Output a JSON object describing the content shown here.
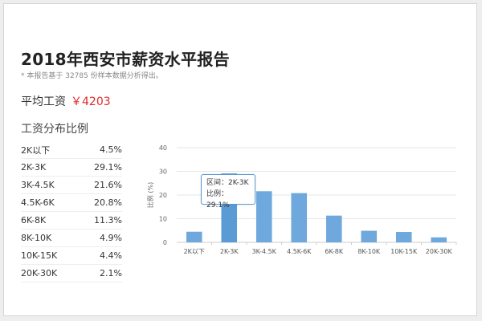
{
  "report": {
    "title": "2018年西安市薪资水平报告",
    "note": "* 本报告基于 32785 份样本数据分析得出。",
    "avg_label": "平均工资",
    "avg_value": "￥4203",
    "distribution_title": "工资分布比例"
  },
  "table": [
    {
      "range": "2K以下",
      "pct": "4.5%"
    },
    {
      "range": "2K-3K",
      "pct": "29.1%"
    },
    {
      "range": "3K-4.5K",
      "pct": "21.6%"
    },
    {
      "range": "4.5K-6K",
      "pct": "20.8%"
    },
    {
      "range": "6K-8K",
      "pct": "11.3%"
    },
    {
      "range": "8K-10K",
      "pct": "4.9%"
    },
    {
      "range": "10K-15K",
      "pct": "4.4%"
    },
    {
      "range": "20K-30K",
      "pct": "2.1%"
    }
  ],
  "tooltip": {
    "line1": "区间：2K-3K",
    "line2": "比例：29.1%"
  },
  "colors": {
    "bar": "#6fa8dc",
    "bar_highlight": "#5b9bd5",
    "accent_red": "#e02a2a"
  },
  "chart_data": {
    "type": "bar",
    "categories": [
      "2K以下",
      "2K-3K",
      "3K-4.5K",
      "4.5K-6K",
      "6K-8K",
      "8K-10K",
      "10K-15K",
      "20K-30K"
    ],
    "values": [
      4.5,
      29.1,
      21.6,
      20.8,
      11.3,
      4.9,
      4.4,
      2.1
    ],
    "ylabel": "比例 (%)",
    "ylim": [
      0,
      40
    ],
    "yticks": [
      0,
      10,
      20,
      30,
      40
    ],
    "grid": true,
    "highlighted_category": "2K-3K"
  }
}
